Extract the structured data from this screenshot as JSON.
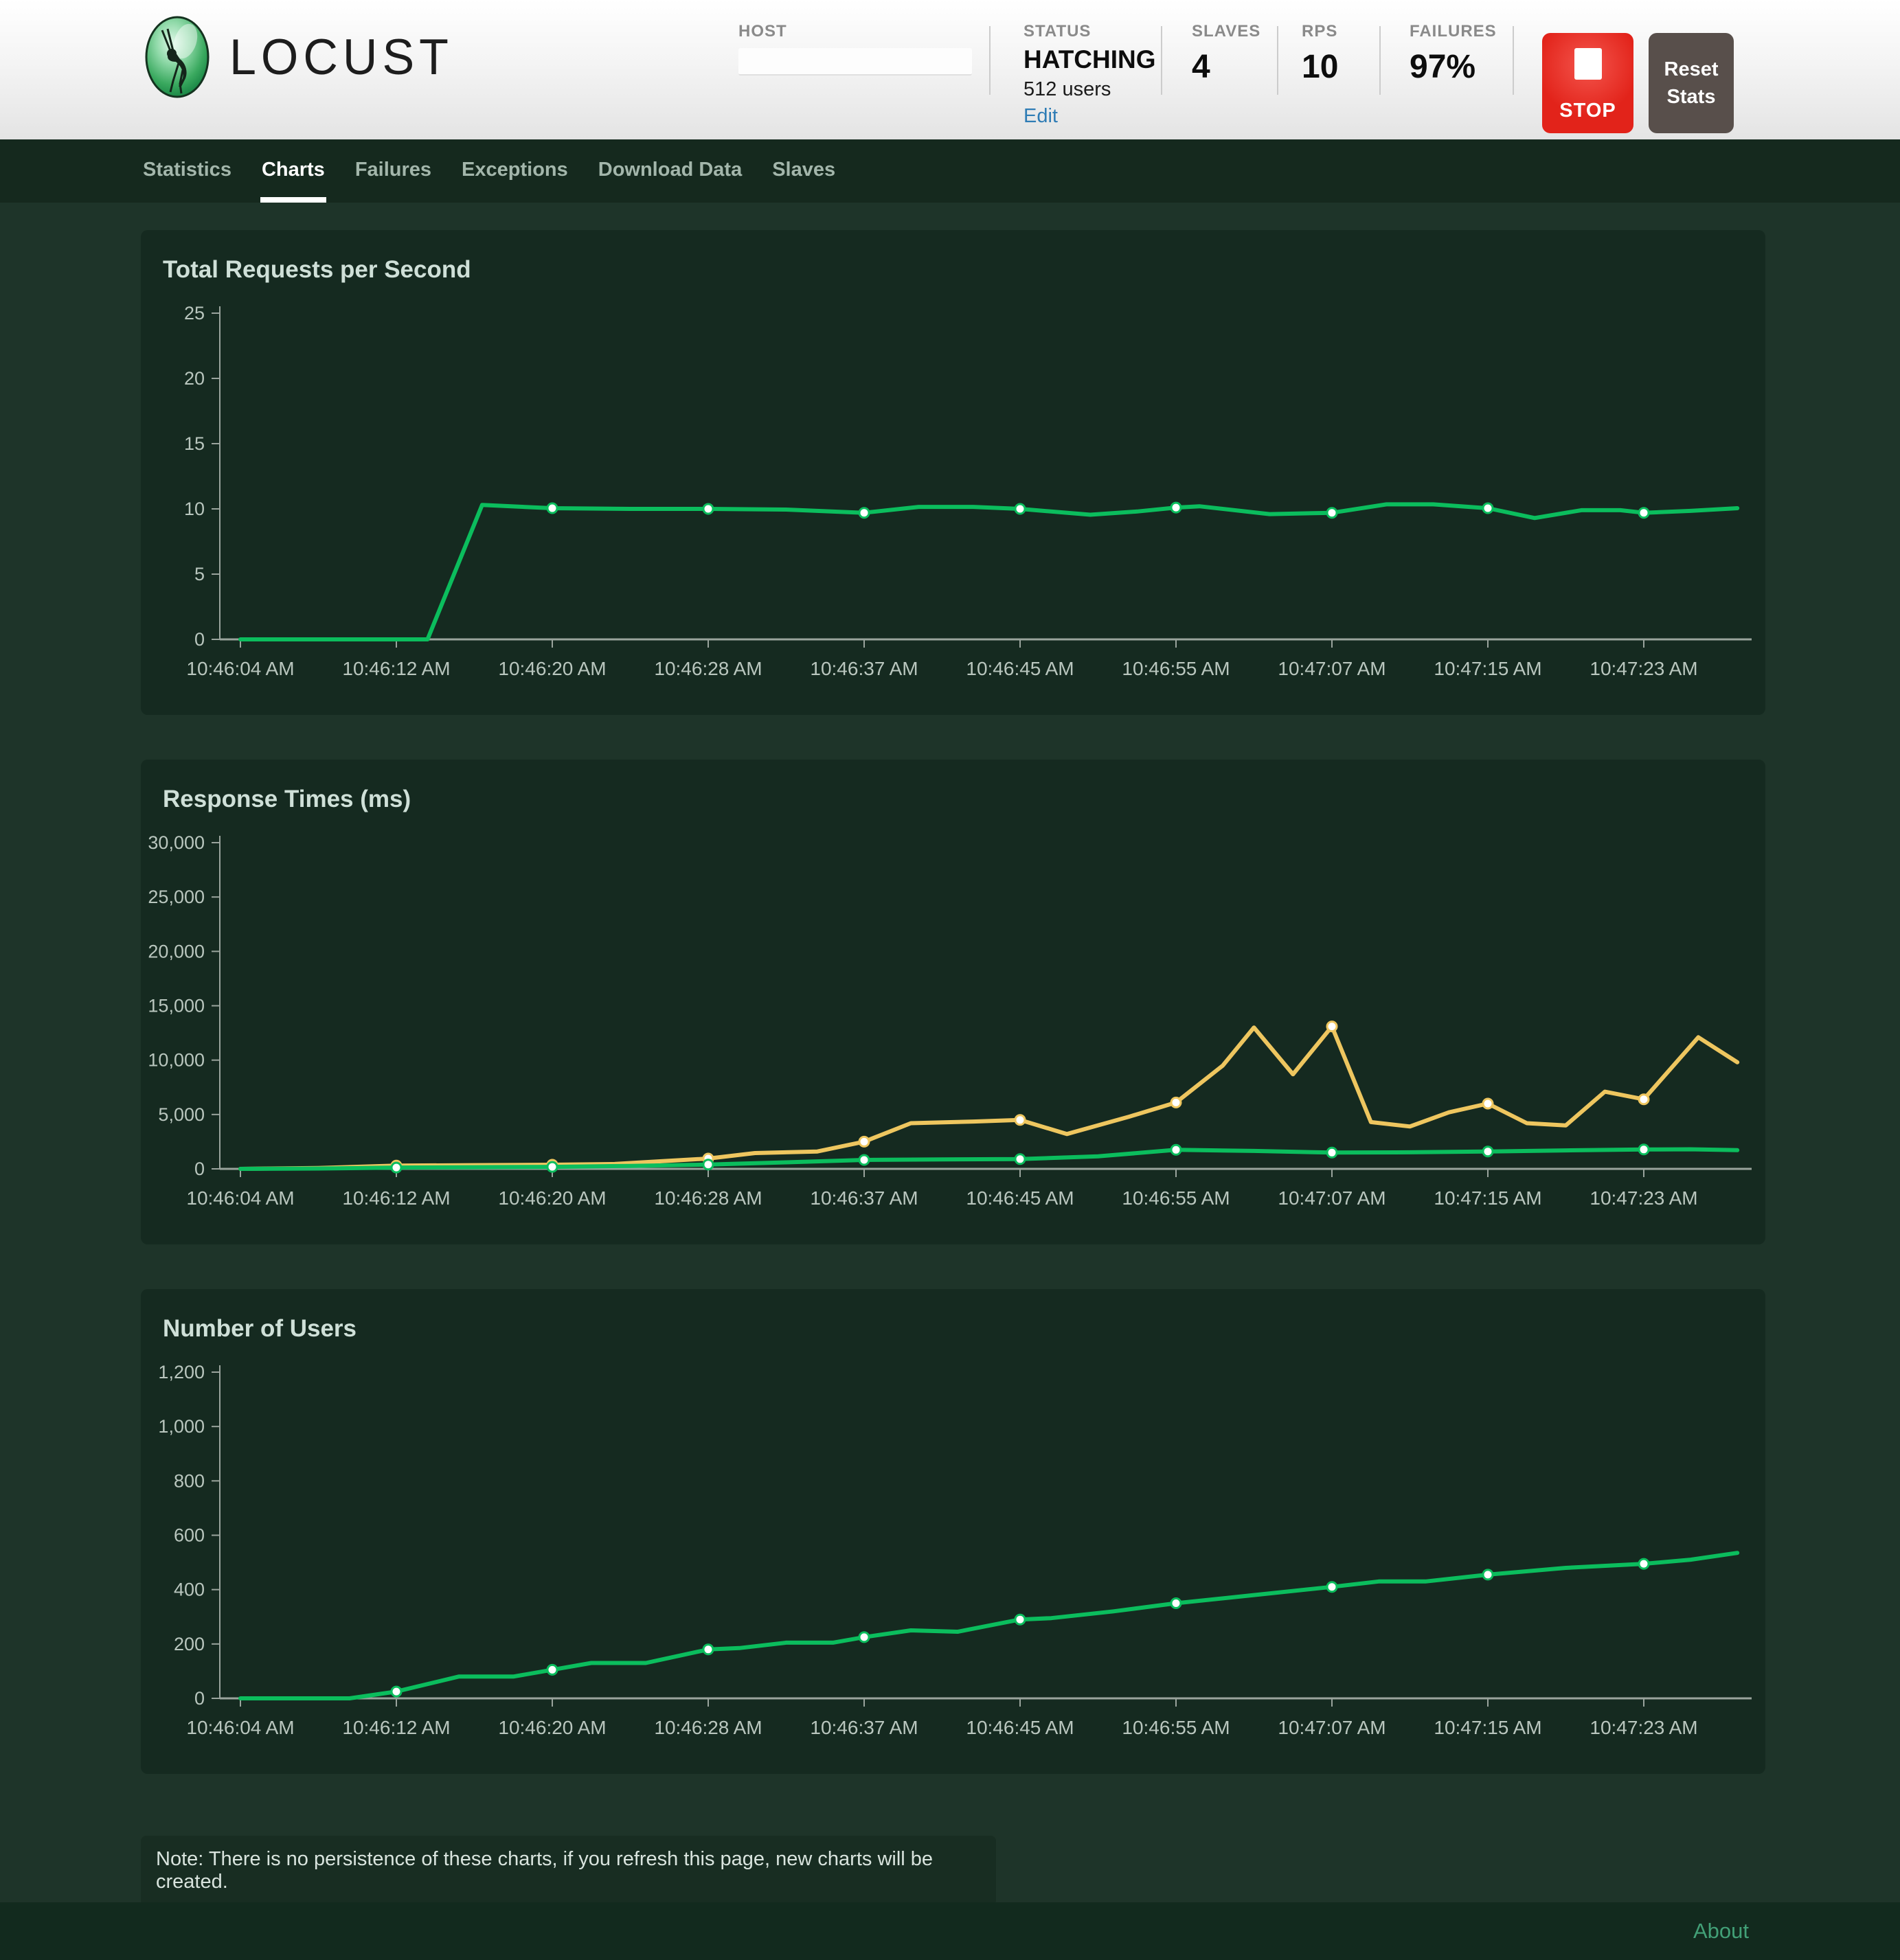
{
  "header": {
    "logo_text": "LOCUST",
    "host": {
      "label": "HOST",
      "value": ""
    },
    "status": {
      "label": "STATUS",
      "value": "HATCHING",
      "users": "512 users",
      "edit_label": "Edit"
    },
    "slaves": {
      "label": "SLAVES",
      "value": "4"
    },
    "rps": {
      "label": "RPS",
      "value": "10"
    },
    "failures": {
      "label": "FAILURES",
      "value": "97%"
    },
    "stop_label": "STOP",
    "reset_label": "Reset Stats"
  },
  "nav": {
    "items": [
      {
        "label": "Statistics",
        "active": false
      },
      {
        "label": "Charts",
        "active": true
      },
      {
        "label": "Failures",
        "active": false
      },
      {
        "label": "Exceptions",
        "active": false
      },
      {
        "label": "Download Data",
        "active": false
      },
      {
        "label": "Slaves",
        "active": false
      }
    ]
  },
  "note": "Note: There is no persistence of these charts, if you refresh this page, new charts will be created.",
  "footer": {
    "about_label": "About"
  },
  "colors": {
    "green_line": "#0bbd5d",
    "yellow_line": "#eec65f",
    "axis": "#9aa49d",
    "tick_text": "#b9c6be"
  },
  "chart_data": [
    {
      "type": "line",
      "title": "Total Requests per Second",
      "ylim": [
        0,
        25
      ],
      "ytick_labels": [
        "0",
        "5",
        "10",
        "15",
        "20",
        "25"
      ],
      "x_tick_labels": [
        "10:46:04 AM",
        "10:46:12 AM",
        "10:46:20 AM",
        "10:46:28 AM",
        "10:46:37 AM",
        "10:46:45 AM",
        "10:46:55 AM",
        "10:47:07 AM",
        "10:47:15 AM",
        "10:47:23 AM"
      ],
      "grid": false,
      "legend": "none",
      "series": [
        {
          "name": "total-rps",
          "color": "#0bbd5d",
          "points": [
            [
              0,
              0
            ],
            [
              1,
              0
            ],
            [
              1.2,
              0
            ],
            [
              1.55,
              10.3
            ],
            [
              2,
              10.05
            ],
            [
              2.5,
              10.0
            ],
            [
              3,
              10.0
            ],
            [
              3.5,
              9.95
            ],
            [
              4,
              9.7
            ],
            [
              4.35,
              10.15
            ],
            [
              4.7,
              10.15
            ],
            [
              5,
              10.0
            ],
            [
              5.45,
              9.55
            ],
            [
              5.75,
              9.8
            ],
            [
              6,
              10.1
            ],
            [
              6.15,
              10.2
            ],
            [
              6.6,
              9.6
            ],
            [
              7,
              9.7
            ],
            [
              7.35,
              10.35
            ],
            [
              7.65,
              10.35
            ],
            [
              8,
              10.05
            ],
            [
              8.3,
              9.3
            ],
            [
              8.6,
              9.9
            ],
            [
              8.85,
              9.9
            ],
            [
              9,
              9.7
            ],
            [
              9.3,
              9.85
            ],
            [
              9.6,
              10.05
            ]
          ],
          "markers": [
            [
              2,
              10.05
            ],
            [
              3,
              10.0
            ],
            [
              4,
              9.7
            ],
            [
              5,
              10.0
            ],
            [
              6,
              10.1
            ],
            [
              7,
              9.7
            ],
            [
              8,
              10.05
            ],
            [
              9,
              9.7
            ]
          ]
        }
      ]
    },
    {
      "type": "line",
      "title": "Response Times (ms)",
      "ylim": [
        0,
        30000
      ],
      "ytick_labels": [
        "0",
        "5,000",
        "10,000",
        "15,000",
        "20,000",
        "25,000",
        "30,000"
      ],
      "x_tick_labels": [
        "10:46:04 AM",
        "10:46:12 AM",
        "10:46:20 AM",
        "10:46:28 AM",
        "10:46:37 AM",
        "10:46:45 AM",
        "10:46:55 AM",
        "10:47:07 AM",
        "10:47:15 AM",
        "10:47:23 AM"
      ],
      "grid": false,
      "legend": "none",
      "series": [
        {
          "name": "yellow",
          "color": "#eec65f",
          "points": [
            [
              0,
              0
            ],
            [
              0.5,
              80
            ],
            [
              1,
              300
            ],
            [
              1.5,
              340
            ],
            [
              2,
              380
            ],
            [
              2.4,
              450
            ],
            [
              2.7,
              700
            ],
            [
              3,
              950
            ],
            [
              3.3,
              1450
            ],
            [
              3.7,
              1600
            ],
            [
              4,
              2500
            ],
            [
              4.3,
              4200
            ],
            [
              4.7,
              4350
            ],
            [
              5,
              4500
            ],
            [
              5.3,
              3200
            ],
            [
              5.7,
              4800
            ],
            [
              6,
              6100
            ],
            [
              6.3,
              9500
            ],
            [
              6.5,
              13000
            ],
            [
              6.75,
              8700
            ],
            [
              7,
              13100
            ],
            [
              7.25,
              4300
            ],
            [
              7.5,
              3900
            ],
            [
              7.75,
              5200
            ],
            [
              8,
              6000
            ],
            [
              8.25,
              4200
            ],
            [
              8.5,
              4000
            ],
            [
              8.75,
              7100
            ],
            [
              9,
              6400
            ],
            [
              9.35,
              12100
            ],
            [
              9.6,
              9800
            ]
          ],
          "markers": [
            [
              1,
              300
            ],
            [
              2,
              380
            ],
            [
              3,
              950
            ],
            [
              4,
              2500
            ],
            [
              5,
              4500
            ],
            [
              6,
              6100
            ],
            [
              7,
              13100
            ],
            [
              8,
              6000
            ],
            [
              9,
              6400
            ]
          ]
        },
        {
          "name": "green",
          "color": "#0bbd5d",
          "points": [
            [
              0,
              0
            ],
            [
              0.5,
              30
            ],
            [
              1,
              120
            ],
            [
              1.5,
              150
            ],
            [
              2,
              180
            ],
            [
              2.5,
              270
            ],
            [
              3,
              400
            ],
            [
              3.5,
              600
            ],
            [
              4,
              820
            ],
            [
              4.5,
              870
            ],
            [
              5,
              900
            ],
            [
              5.5,
              1150
            ],
            [
              6,
              1750
            ],
            [
              6.5,
              1650
            ],
            [
              7,
              1500
            ],
            [
              7.5,
              1520
            ],
            [
              8,
              1600
            ],
            [
              8.5,
              1700
            ],
            [
              9,
              1780
            ],
            [
              9.3,
              1800
            ],
            [
              9.6,
              1720
            ]
          ],
          "markers": [
            [
              1,
              120
            ],
            [
              2,
              180
            ],
            [
              3,
              400
            ],
            [
              4,
              820
            ],
            [
              5,
              900
            ],
            [
              6,
              1750
            ],
            [
              7,
              1500
            ],
            [
              8,
              1600
            ],
            [
              9,
              1780
            ]
          ]
        }
      ]
    },
    {
      "type": "line",
      "title": "Number of Users",
      "ylim": [
        0,
        1200
      ],
      "ytick_labels": [
        "0",
        "200",
        "400",
        "600",
        "800",
        "1,000",
        "1,200"
      ],
      "x_tick_labels": [
        "10:46:04 AM",
        "10:46:12 AM",
        "10:46:20 AM",
        "10:46:28 AM",
        "10:46:37 AM",
        "10:46:45 AM",
        "10:46:55 AM",
        "10:47:07 AM",
        "10:47:15 AM",
        "10:47:23 AM"
      ],
      "grid": false,
      "legend": "none",
      "series": [
        {
          "name": "users",
          "color": "#0bbd5d",
          "points": [
            [
              0,
              0
            ],
            [
              0.7,
              0
            ],
            [
              1,
              25
            ],
            [
              1.4,
              80
            ],
            [
              1.75,
              80
            ],
            [
              2,
              105
            ],
            [
              2.25,
              130
            ],
            [
              2.6,
              130
            ],
            [
              3,
              180
            ],
            [
              3.2,
              185
            ],
            [
              3.5,
              205
            ],
            [
              3.8,
              205
            ],
            [
              4,
              225
            ],
            [
              4.3,
              250
            ],
            [
              4.6,
              245
            ],
            [
              5,
              290
            ],
            [
              5.2,
              295
            ],
            [
              5.6,
              320
            ],
            [
              6,
              350
            ],
            [
              6.5,
              380
            ],
            [
              7,
              410
            ],
            [
              7.3,
              430
            ],
            [
              7.6,
              430
            ],
            [
              8,
              455
            ],
            [
              8.5,
              480
            ],
            [
              9,
              495
            ],
            [
              9.3,
              510
            ],
            [
              9.6,
              535
            ]
          ],
          "markers": [
            [
              1,
              25
            ],
            [
              2,
              105
            ],
            [
              3,
              180
            ],
            [
              4,
              225
            ],
            [
              5,
              290
            ],
            [
              6,
              350
            ],
            [
              7,
              410
            ],
            [
              8,
              455
            ],
            [
              9,
              495
            ]
          ]
        }
      ]
    }
  ]
}
